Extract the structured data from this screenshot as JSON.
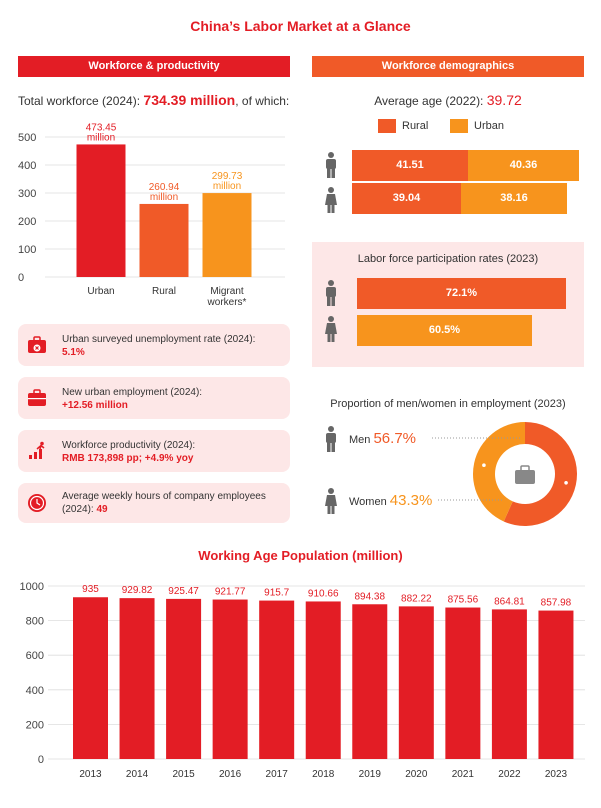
{
  "title": "China’s Labor Market at a Glance",
  "left_header": "Workforce & productivity",
  "right_header": "Workforce demographics",
  "total_workforce": {
    "label": "Total workforce (2024):",
    "value": "734.39 million",
    "suffix": ", of which:"
  },
  "colors": {
    "red": "#e31d25",
    "orange_dark": "#f05a28",
    "orange_light": "#f7941d",
    "pink_bg": "#fde7e7"
  },
  "chart_data": [
    {
      "type": "bar",
      "categories": [
        "Urban",
        "Rural",
        "Migrant workers*"
      ],
      "values": [
        473.45,
        260.94,
        299.73
      ],
      "value_labels": [
        "473.45 million",
        "260.94 million",
        "299.73 million"
      ],
      "ylim": [
        0,
        500
      ],
      "yticks": [
        0,
        100,
        200,
        300,
        400,
        500
      ],
      "colors": [
        "#e31d25",
        "#f05a28",
        "#f7941d"
      ],
      "grid": true
    },
    {
      "type": "bar",
      "title": "Working Age Population (million)",
      "categories": [
        "2013",
        "2014",
        "2015",
        "2016",
        "2017",
        "2018",
        "2019",
        "2020",
        "2021",
        "2022",
        "2023"
      ],
      "values": [
        935,
        929.82,
        925.47,
        921.77,
        915.7,
        910.66,
        894.38,
        882.22,
        875.56,
        864.81,
        857.98
      ],
      "value_labels": [
        "935",
        "929.82",
        "925.47",
        "921.77",
        "915.7",
        "910.66",
        "894.38",
        "882.22",
        "875.56",
        "864.81",
        "857.98"
      ],
      "ylim": [
        0,
        1000
      ],
      "yticks": [
        0,
        200,
        400,
        600,
        800,
        1000
      ],
      "grid": true,
      "color": "#e31d25"
    },
    {
      "type": "bar",
      "title": "Average age (2022): 39.72",
      "series": [
        {
          "name": "Rural",
          "values": [
            41.51,
            39.04
          ],
          "color": "#f05a28"
        },
        {
          "name": "Urban",
          "values": [
            40.36,
            38.16
          ],
          "color": "#f7941d"
        }
      ],
      "categories": [
        "Men",
        "Women"
      ]
    },
    {
      "type": "bar",
      "title": "Labor force participation rates (2023)",
      "categories": [
        "Men",
        "Women"
      ],
      "values": [
        72.1,
        60.5
      ],
      "value_labels": [
        "72.1%",
        "60.5%"
      ]
    },
    {
      "type": "pie",
      "title": "Proportion of men/women in employment (2023)",
      "categories": [
        "Men",
        "Women"
      ],
      "values": [
        56.7,
        43.3
      ],
      "value_labels": [
        "56.7%",
        "43.3%"
      ],
      "colors": [
        "#f05a28",
        "#f7941d"
      ]
    }
  ],
  "cards": [
    {
      "label": "Urban surveyed unemployment rate (2024):",
      "value": "5.1%",
      "icon": "briefcase-x-icon"
    },
    {
      "label": "New urban employment (2024):",
      "value": "+12.56 million",
      "icon": "briefcase-icon"
    },
    {
      "label": "Workforce productivity (2024):",
      "value": "RMB 173,898 pp; +4.9% yoy",
      "icon": "growth-runner-icon"
    },
    {
      "label": "Average weekly hours of company employees",
      "label2": "(2024): ",
      "value": "49",
      "icon": "clock-icon"
    }
  ],
  "avg_age": {
    "label": "Average age (2022): ",
    "value": "39.72",
    "legend_rural": "Rural",
    "legend_urban": "Urban",
    "men_rural": "41.51",
    "men_urban": "40.36",
    "women_rural": "39.04",
    "women_urban": "38.16"
  },
  "participation": {
    "title": "Labor force participation rates (2023)",
    "men": "72.1%",
    "women": "60.5%"
  },
  "proportion": {
    "title": "Proportion of men/women in employment (2023)",
    "men_label": "Men",
    "men_value": "56.7%",
    "women_label": "Women",
    "women_value": "43.3%"
  }
}
